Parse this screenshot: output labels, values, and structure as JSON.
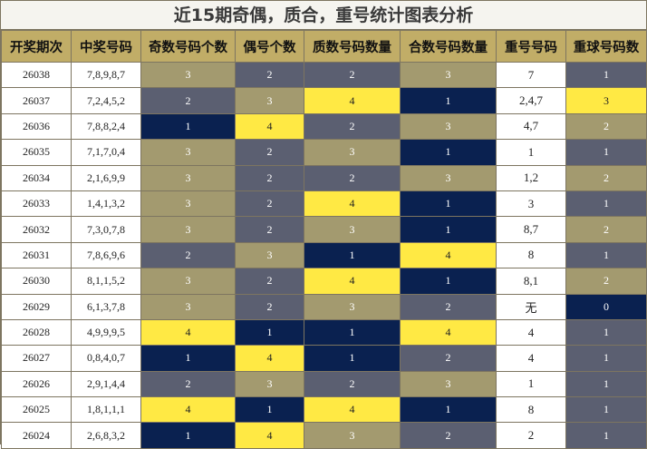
{
  "title": "近15期奇偶，质合，重号统计图表分析",
  "headers": [
    "开奖期次",
    "中奖号码",
    "奇数号码个数",
    "偶号个数",
    "质数号码数量",
    "合数号码数量",
    "重号号码",
    "重球号码数"
  ],
  "colors": {
    "header_bg": "#c1ad67",
    "tan": "#a39a6f",
    "gray": "#5b5f71",
    "navy": "#0a2150",
    "yellow": "#ffe944"
  },
  "rows": [
    {
      "period": "26038",
      "numbers": "7,8,9,8,7",
      "odd": "3",
      "even": "2",
      "prime": "2",
      "composite": "3",
      "repeat": "7",
      "repeat_count": "1"
    },
    {
      "period": "26037",
      "numbers": "7,2,4,5,2",
      "odd": "2",
      "even": "3",
      "prime": "4",
      "composite": "1",
      "repeat": "2,4,7",
      "repeat_count": "3"
    },
    {
      "period": "26036",
      "numbers": "7,8,8,2,4",
      "odd": "1",
      "even": "4",
      "prime": "2",
      "composite": "3",
      "repeat": "4,7",
      "repeat_count": "2"
    },
    {
      "period": "26035",
      "numbers": "7,1,7,0,4",
      "odd": "3",
      "even": "2",
      "prime": "3",
      "composite": "1",
      "repeat": "1",
      "repeat_count": "1"
    },
    {
      "period": "26034",
      "numbers": "2,1,6,9,9",
      "odd": "3",
      "even": "2",
      "prime": "2",
      "composite": "3",
      "repeat": "1,2",
      "repeat_count": "2"
    },
    {
      "period": "26033",
      "numbers": "1,4,1,3,2",
      "odd": "3",
      "even": "2",
      "prime": "4",
      "composite": "1",
      "repeat": "3",
      "repeat_count": "1"
    },
    {
      "period": "26032",
      "numbers": "7,3,0,7,8",
      "odd": "3",
      "even": "2",
      "prime": "3",
      "composite": "1",
      "repeat": "8,7",
      "repeat_count": "2"
    },
    {
      "period": "26031",
      "numbers": "7,8,6,9,6",
      "odd": "2",
      "even": "3",
      "prime": "1",
      "composite": "4",
      "repeat": "8",
      "repeat_count": "1"
    },
    {
      "period": "26030",
      "numbers": "8,1,1,5,2",
      "odd": "3",
      "even": "2",
      "prime": "4",
      "composite": "1",
      "repeat": "8,1",
      "repeat_count": "2"
    },
    {
      "period": "26029",
      "numbers": "6,1,3,7,8",
      "odd": "3",
      "even": "2",
      "prime": "3",
      "composite": "2",
      "repeat": "无",
      "repeat_count": "0"
    },
    {
      "period": "26028",
      "numbers": "4,9,9,9,5",
      "odd": "4",
      "even": "1",
      "prime": "1",
      "composite": "4",
      "repeat": "4",
      "repeat_count": "1"
    },
    {
      "period": "26027",
      "numbers": "0,8,4,0,7",
      "odd": "1",
      "even": "4",
      "prime": "1",
      "composite": "2",
      "repeat": "4",
      "repeat_count": "1"
    },
    {
      "period": "26026",
      "numbers": "2,9,1,4,4",
      "odd": "2",
      "even": "3",
      "prime": "2",
      "composite": "3",
      "repeat": "1",
      "repeat_count": "1"
    },
    {
      "period": "26025",
      "numbers": "1,8,1,1,1",
      "odd": "4",
      "even": "1",
      "prime": "4",
      "composite": "1",
      "repeat": "8",
      "repeat_count": "1"
    },
    {
      "period": "26024",
      "numbers": "2,6,8,3,2",
      "odd": "1",
      "even": "4",
      "prime": "3",
      "composite": "2",
      "repeat": "2",
      "repeat_count": "1"
    }
  ]
}
